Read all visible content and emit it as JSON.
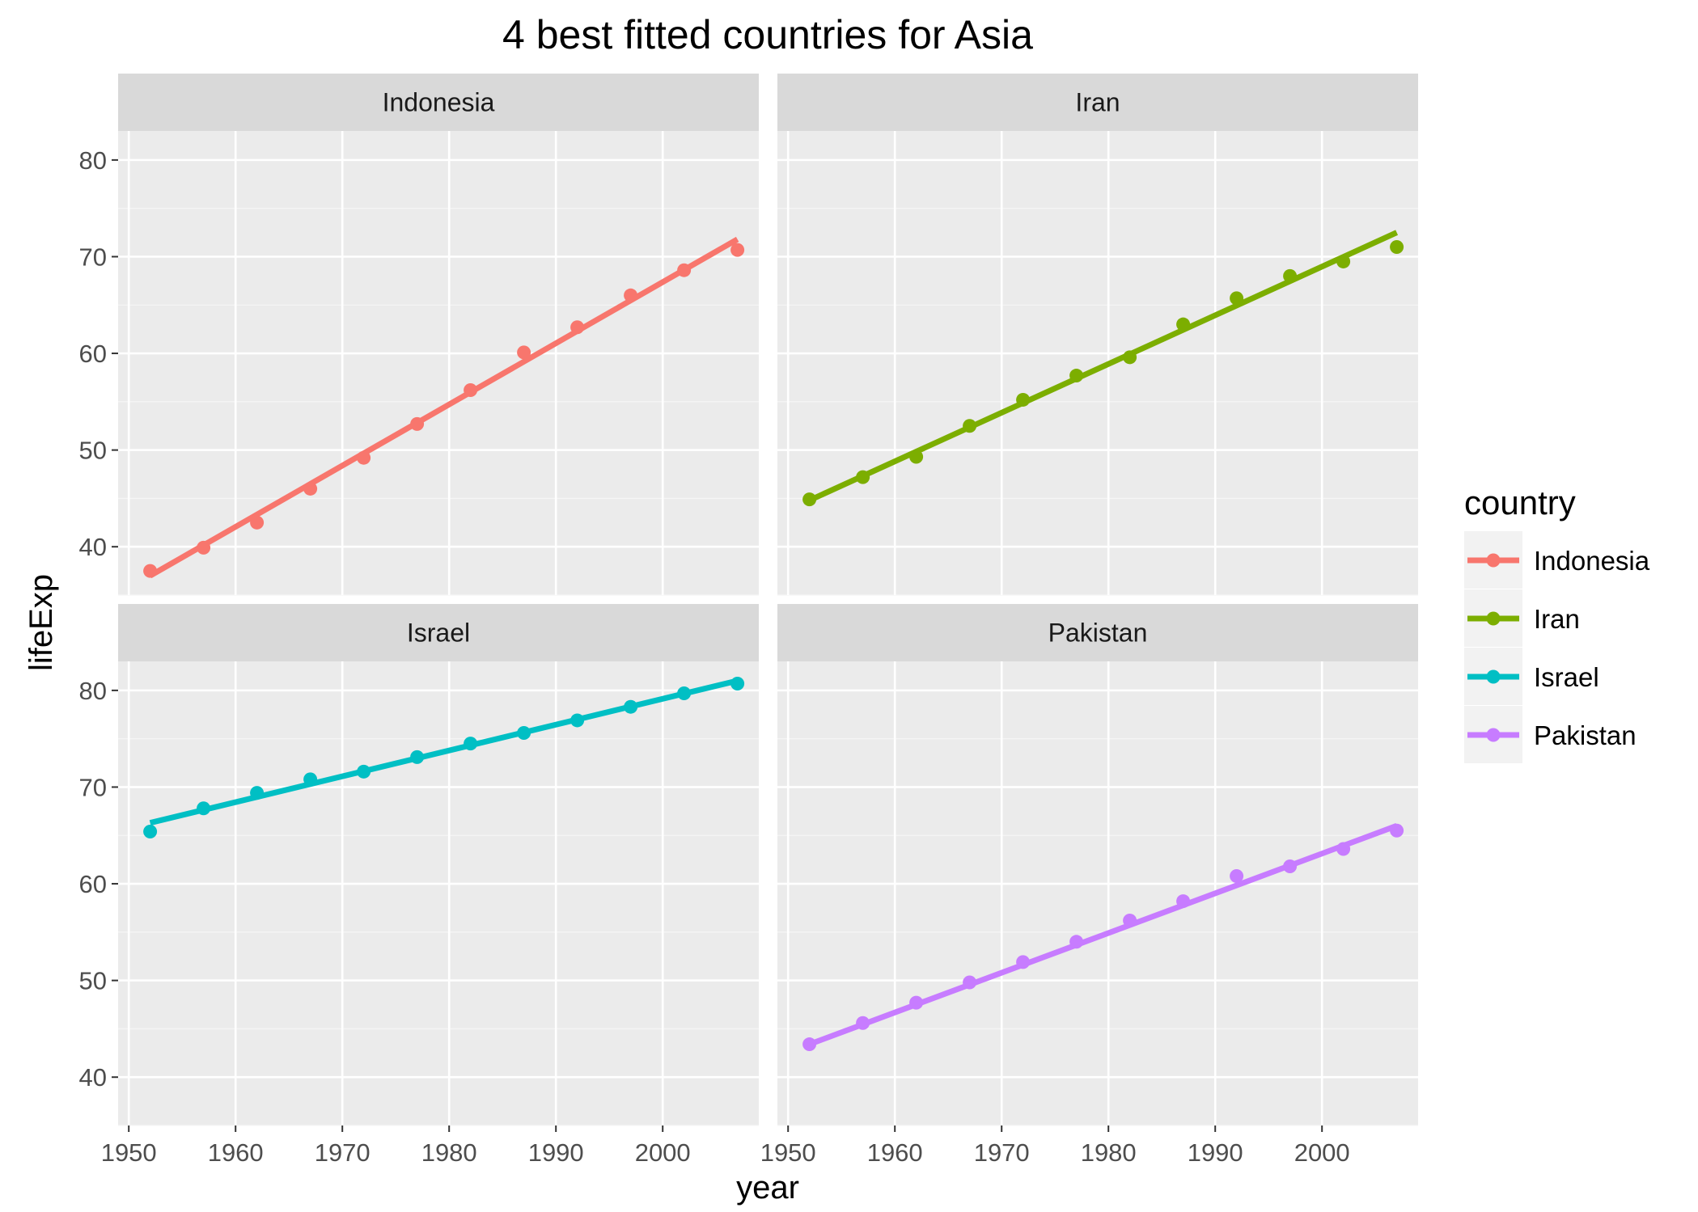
{
  "chart_data": {
    "type": "line",
    "title": "4 best fitted countries for Asia",
    "xlabel": "year",
    "ylabel": "lifeExp",
    "xlim": [
      1949,
      2009
    ],
    "ylim": [
      35,
      83
    ],
    "x_ticks": [
      1950,
      1960,
      1970,
      1980,
      1990,
      2000
    ],
    "y_ticks": [
      40,
      50,
      60,
      70,
      80
    ],
    "grid": true,
    "facets": "2x2",
    "legend": {
      "title": "country",
      "position": "right",
      "entries": [
        "Indonesia",
        "Iran",
        "Israel",
        "Pakistan"
      ]
    },
    "x": [
      1952,
      1957,
      1962,
      1967,
      1972,
      1977,
      1982,
      1987,
      1992,
      1997,
      2002,
      2007
    ],
    "panels": [
      {
        "name": "Indonesia",
        "color": "#f8766d",
        "points": [
          37.5,
          39.9,
          42.5,
          46.0,
          49.2,
          52.7,
          56.2,
          60.1,
          62.7,
          66.0,
          68.6,
          70.7
        ],
        "fit": [
          37.0,
          71.8
        ]
      },
      {
        "name": "Iran",
        "color": "#7cae00",
        "points": [
          44.9,
          47.2,
          49.3,
          52.5,
          55.2,
          57.7,
          59.6,
          63.0,
          65.7,
          68.0,
          69.5,
          71.0
        ],
        "fit": [
          44.8,
          72.5
        ]
      },
      {
        "name": "Israel",
        "color": "#00bfc4",
        "points": [
          65.4,
          67.8,
          69.4,
          70.8,
          71.6,
          73.1,
          74.5,
          75.6,
          76.9,
          78.3,
          79.7,
          80.7
        ],
        "fit": [
          66.3,
          81.0
        ]
      },
      {
        "name": "Pakistan",
        "color": "#c77cff",
        "points": [
          43.4,
          45.6,
          47.7,
          49.8,
          51.9,
          54.0,
          56.2,
          58.2,
          60.8,
          61.8,
          63.6,
          65.5
        ],
        "fit": [
          43.4,
          66.0
        ]
      }
    ]
  }
}
